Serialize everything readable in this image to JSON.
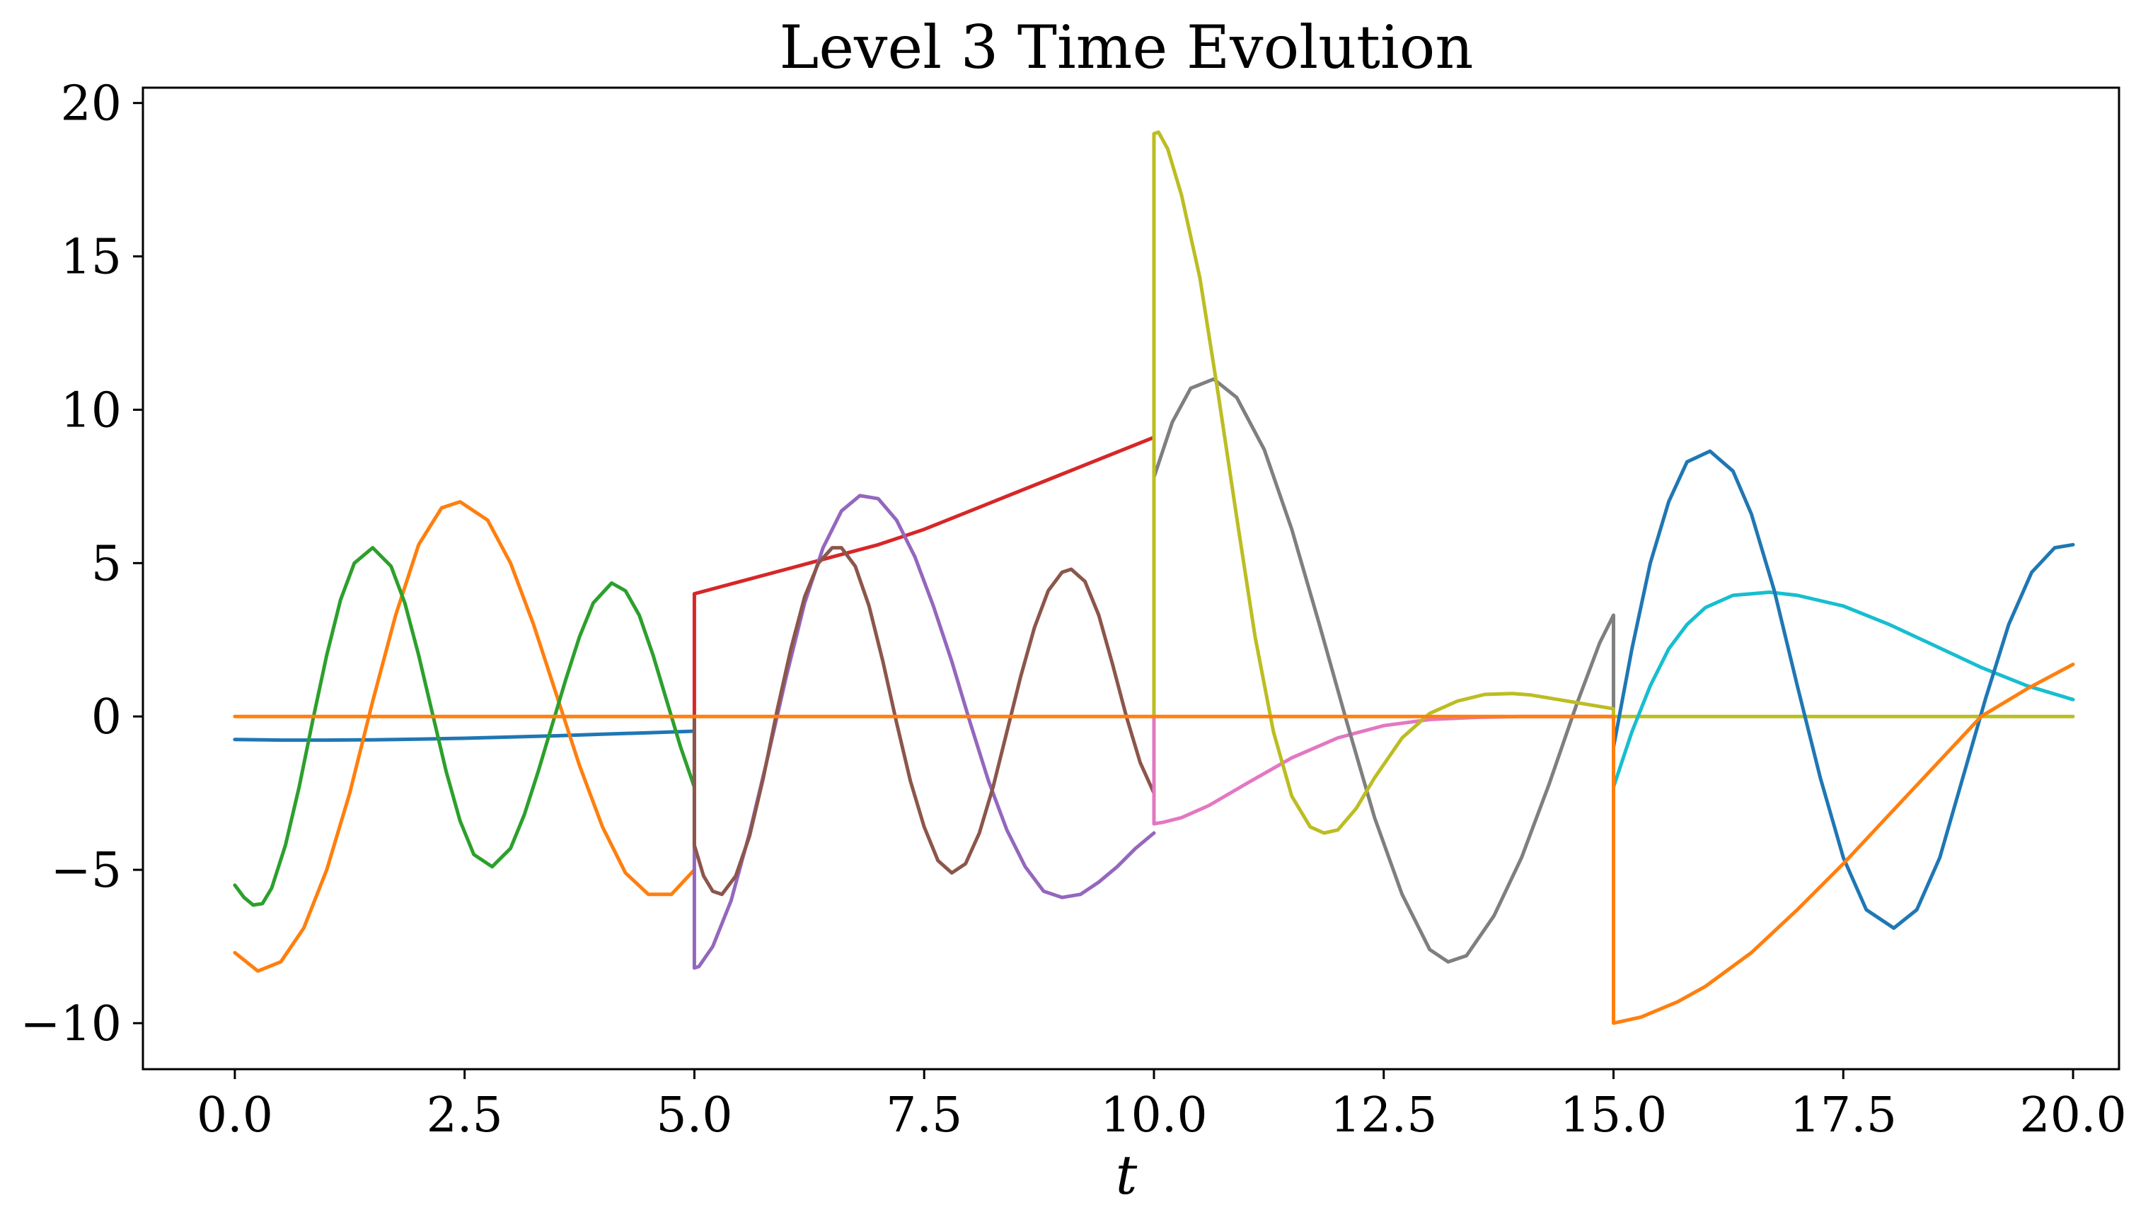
{
  "chart_data": {
    "type": "line",
    "title": "Level 3 Time Evolution",
    "xlabel": "t",
    "ylabel": "",
    "xlim": [
      -1.0,
      20.5
    ],
    "ylim": [
      -11.5,
      20.5
    ],
    "grid": false,
    "legend": "none",
    "x_ticks": [
      0,
      2.5,
      5,
      7.5,
      10,
      12.5,
      15,
      17.5,
      20
    ],
    "x_tick_labels": [
      "0.0",
      "2.5",
      "5.0",
      "7.5",
      "10.0",
      "12.5",
      "15.0",
      "17.5",
      "20.0"
    ],
    "y_ticks": [
      -10,
      -5,
      0,
      5,
      10,
      15,
      20
    ],
    "y_tick_labels": [
      "−10",
      "−5",
      "0",
      "5",
      "10",
      "15",
      "20"
    ],
    "series": [
      {
        "color": "#1f77b4",
        "x": [
          0,
          0.5,
          1,
          1.5,
          2,
          2.5,
          3,
          3.5,
          4,
          4.5,
          5
        ],
        "y": [
          -0.75,
          -0.77,
          -0.77,
          -0.76,
          -0.74,
          -0.71,
          -0.67,
          -0.63,
          -0.58,
          -0.53,
          -0.48
        ]
      },
      {
        "color": "#ff7f0e",
        "x": [
          0,
          0.25,
          0.5,
          0.75,
          1,
          1.25,
          1.5,
          1.75,
          2,
          2.25,
          2.45,
          2.75,
          3,
          3.25,
          3.5,
          3.75,
          4,
          4.25,
          4.5,
          4.75,
          5
        ],
        "y": [
          -7.7,
          -8.3,
          -8.0,
          -6.9,
          -5.0,
          -2.5,
          0.5,
          3.3,
          5.6,
          6.8,
          7.0,
          6.4,
          5.0,
          3.0,
          0.7,
          -1.6,
          -3.6,
          -5.1,
          -5.8,
          -5.8,
          -5.0
        ]
      },
      {
        "color": "#2ca02c",
        "x": [
          0,
          0.1,
          0.2,
          0.3,
          0.4,
          0.55,
          0.7,
          0.85,
          1.0,
          1.15,
          1.3,
          1.5,
          1.7,
          1.85,
          2.0,
          2.15,
          2.3,
          2.45,
          2.6,
          2.8,
          3.0,
          3.15,
          3.3,
          3.45,
          3.6,
          3.75,
          3.9,
          4.1,
          4.25,
          4.4,
          4.55,
          4.7,
          4.85,
          5.0
        ],
        "y": [
          -5.5,
          -5.9,
          -6.15,
          -6.1,
          -5.6,
          -4.2,
          -2.3,
          -0.1,
          2.0,
          3.8,
          5.0,
          5.5,
          4.9,
          3.7,
          2.0,
          0.1,
          -1.8,
          -3.4,
          -4.5,
          -4.9,
          -4.3,
          -3.2,
          -1.8,
          -0.3,
          1.2,
          2.6,
          3.7,
          4.35,
          4.1,
          3.3,
          2.0,
          0.5,
          -1.0,
          -2.3
        ]
      },
      {
        "color": "#d62728",
        "x": [
          5,
          5,
          5.5,
          6,
          6.5,
          7,
          7.5,
          8,
          8.5,
          9,
          9.5,
          10
        ],
        "y": [
          0,
          4.0,
          4.4,
          4.8,
          5.2,
          5.6,
          6.1,
          6.7,
          7.3,
          7.9,
          8.5,
          9.1
        ]
      },
      {
        "color": "#9467bd",
        "x": [
          5,
          5,
          5.05,
          5.2,
          5.4,
          5.6,
          5.8,
          6.0,
          6.2,
          6.4,
          6.6,
          6.8,
          7.0,
          7.2,
          7.4,
          7.6,
          7.8,
          8.0,
          8.2,
          8.4,
          8.6,
          8.8,
          9.0,
          9.2,
          9.4,
          9.6,
          9.8,
          10.0
        ],
        "y": [
          0,
          -8.2,
          -8.15,
          -7.5,
          -6.0,
          -3.8,
          -1.3,
          1.3,
          3.7,
          5.5,
          6.7,
          7.2,
          7.1,
          6.4,
          5.2,
          3.6,
          1.8,
          -0.2,
          -2.1,
          -3.7,
          -4.9,
          -5.7,
          -5.9,
          -5.8,
          -5.4,
          -4.9,
          -4.3,
          -3.8
        ]
      },
      {
        "color": "#8c564b",
        "x": [
          5,
          5,
          5.1,
          5.2,
          5.3,
          5.45,
          5.6,
          5.75,
          5.9,
          6.05,
          6.2,
          6.35,
          6.5,
          6.6,
          6.75,
          6.9,
          7.05,
          7.2,
          7.35,
          7.5,
          7.65,
          7.8,
          7.95,
          8.1,
          8.25,
          8.4,
          8.55,
          8.7,
          8.85,
          9.0,
          9.1,
          9.25,
          9.4,
          9.55,
          9.7,
          9.85,
          10.0
        ],
        "y": [
          0,
          -4.2,
          -5.2,
          -5.7,
          -5.8,
          -5.2,
          -3.9,
          -2.0,
          0.2,
          2.2,
          3.9,
          5.0,
          5.5,
          5.5,
          4.9,
          3.6,
          1.8,
          -0.2,
          -2.1,
          -3.6,
          -4.7,
          -5.1,
          -4.8,
          -3.8,
          -2.3,
          -0.5,
          1.3,
          2.9,
          4.1,
          4.7,
          4.8,
          4.4,
          3.3,
          1.7,
          0,
          -1.5,
          -2.5
        ]
      },
      {
        "color": "#e377c2",
        "x": [
          10,
          10,
          10.1,
          10.3,
          10.6,
          11,
          11.5,
          12,
          12.5,
          13,
          13.5,
          14,
          15
        ],
        "y": [
          0,
          -3.5,
          -3.45,
          -3.3,
          -2.9,
          -2.2,
          -1.35,
          -0.7,
          -0.3,
          -0.1,
          -0.03,
          0,
          0
        ]
      },
      {
        "color": "#7f7f7f",
        "x": [
          10,
          10.2,
          10.4,
          10.65,
          10.9,
          11.2,
          11.5,
          11.8,
          12.1,
          12.4,
          12.7,
          13.0,
          13.2,
          13.4,
          13.7,
          14.0,
          14.3,
          14.6,
          14.85,
          15.0,
          15.0
        ],
        "y": [
          7.8,
          9.6,
          10.7,
          11.0,
          10.4,
          8.7,
          6.1,
          3.0,
          -0.2,
          -3.3,
          -5.8,
          -7.6,
          -8.0,
          -7.8,
          -6.5,
          -4.6,
          -2.2,
          0.4,
          2.4,
          3.3,
          0
        ]
      },
      {
        "color": "#bcbd22",
        "x": [
          10,
          10,
          10.05,
          10.15,
          10.3,
          10.5,
          10.7,
          10.9,
          11.1,
          11.3,
          11.5,
          11.7,
          11.85,
          12.0,
          12.2,
          12.4,
          12.7,
          13.0,
          13.3,
          13.6,
          13.9,
          14.1,
          14.4,
          14.7,
          15.0,
          15.0,
          16,
          17,
          18,
          19,
          20
        ],
        "y": [
          0,
          19.0,
          19.05,
          18.5,
          17.0,
          14.3,
          10.5,
          6.5,
          2.6,
          -0.5,
          -2.6,
          -3.6,
          -3.8,
          -3.7,
          -3.0,
          -2.0,
          -0.7,
          0.1,
          0.5,
          0.72,
          0.75,
          0.7,
          0.55,
          0.4,
          0.25,
          0,
          0,
          0,
          0,
          0,
          0
        ]
      },
      {
        "color": "#17becf",
        "x": [
          15,
          15.2,
          15.4,
          15.6,
          15.8,
          16.0,
          16.3,
          16.7,
          17.0,
          17.5,
          18,
          18.5,
          19,
          19.5,
          20
        ],
        "y": [
          -2.3,
          -0.5,
          1.0,
          2.2,
          3.0,
          3.55,
          3.95,
          4.05,
          3.95,
          3.6,
          3.0,
          2.3,
          1.6,
          1.0,
          0.55
        ]
      },
      {
        "color": "#1f77b4",
        "x": [
          15,
          15.2,
          15.4,
          15.6,
          15.8,
          16.05,
          16.3,
          16.5,
          16.75,
          17.0,
          17.25,
          17.5,
          17.75,
          18.05,
          18.3,
          18.55,
          18.8,
          19.05,
          19.3,
          19.55,
          19.8,
          20.0
        ],
        "y": [
          -1.0,
          2.2,
          5.0,
          7.0,
          8.3,
          8.65,
          8.0,
          6.6,
          4.1,
          1.0,
          -2.0,
          -4.6,
          -6.3,
          -6.9,
          -6.3,
          -4.6,
          -2.0,
          0.6,
          3.0,
          4.7,
          5.5,
          5.6
        ]
      },
      {
        "color": "#ff7f0e",
        "x": [
          0,
          15,
          15,
          15.3,
          15.7,
          16,
          16.5,
          17,
          17.5,
          18,
          18.5,
          19,
          19.5,
          20
        ],
        "y": [
          0,
          0,
          -10.0,
          -9.8,
          -9.3,
          -8.8,
          -7.7,
          -6.3,
          -4.8,
          -3.2,
          -1.6,
          0,
          0.9,
          1.7
        ]
      }
    ]
  }
}
